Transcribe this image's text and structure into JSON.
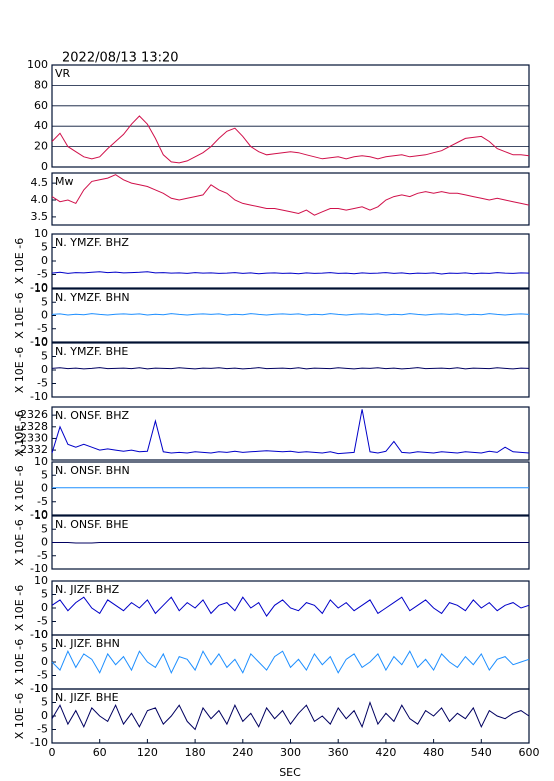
{
  "chart_data": {
    "type": "line",
    "title": "2022/08/13 13:20",
    "xlabel": "SEC",
    "xlim": [
      0,
      600
    ],
    "xticks": [
      0,
      60,
      120,
      180,
      240,
      300,
      360,
      420,
      480,
      540,
      600
    ],
    "x": [
      0,
      10,
      20,
      30,
      40,
      50,
      60,
      70,
      80,
      90,
      100,
      110,
      120,
      130,
      140,
      150,
      160,
      170,
      180,
      190,
      200,
      210,
      220,
      230,
      240,
      250,
      260,
      270,
      280,
      290,
      300,
      310,
      320,
      330,
      340,
      350,
      360,
      370,
      380,
      390,
      400,
      410,
      420,
      430,
      440,
      450,
      460,
      470,
      480,
      490,
      500,
      510,
      520,
      530,
      540,
      550,
      560,
      570,
      580,
      590,
      600
    ],
    "panels": [
      {
        "label": "VR",
        "ylim": [
          0,
          100
        ],
        "yticks": [
          0,
          20,
          40,
          60,
          80,
          100
        ],
        "grid": true,
        "color": "#d0104a",
        "values": [
          25,
          33,
          20,
          15,
          10,
          8,
          10,
          18,
          25,
          32,
          42,
          50,
          42,
          28,
          12,
          5,
          4,
          6,
          10,
          14,
          20,
          28,
          35,
          38,
          30,
          20,
          15,
          12,
          13,
          14,
          15,
          14,
          12,
          10,
          8,
          9,
          10,
          8,
          10,
          11,
          10,
          8,
          10,
          11,
          12,
          10,
          11,
          12,
          14,
          16,
          20,
          24,
          28,
          29,
          30,
          25,
          18,
          15,
          12,
          12,
          11
        ]
      },
      {
        "label": "Mw",
        "ylim": [
          3.26,
          4.8
        ],
        "yticks": [
          3.5,
          {
            "value": 4,
            "label": "4.0"
          },
          4.5
        ],
        "grid": false,
        "color": "#d0104a",
        "values": [
          4.1,
          3.95,
          4.0,
          3.9,
          4.3,
          4.55,
          4.6,
          4.65,
          4.75,
          4.6,
          4.5,
          4.45,
          4.4,
          4.3,
          4.2,
          4.05,
          4.0,
          4.05,
          4.1,
          4.15,
          4.45,
          4.3,
          4.2,
          4.0,
          3.9,
          3.85,
          3.8,
          3.75,
          3.75,
          3.7,
          3.65,
          3.6,
          3.7,
          3.55,
          3.65,
          3.75,
          3.75,
          3.7,
          3.75,
          3.8,
          3.7,
          3.8,
          4.0,
          4.1,
          4.15,
          4.1,
          4.2,
          4.25,
          4.2,
          4.25,
          4.2,
          4.2,
          4.15,
          4.1,
          4.05,
          4.0,
          4.05,
          4.0,
          3.95,
          3.9,
          3.85
        ]
      },
      {
        "label": "N. YMZF. BHZ",
        "ylabel": "X 10E -6",
        "ylim": [
          -10,
          10
        ],
        "yticks": [
          -10,
          -5,
          0,
          5,
          10
        ],
        "grid": false,
        "color": "#0000c8",
        "values": [
          -4.5,
          -4.2,
          -4.6,
          -4.3,
          -4.4,
          -4.2,
          -4.0,
          -4.3,
          -4.1,
          -4.4,
          -4.3,
          -4.2,
          -4.0,
          -4.4,
          -4.3,
          -4.5,
          -4.4,
          -4.6,
          -4.3,
          -4.5,
          -4.4,
          -4.6,
          -4.5,
          -4.3,
          -4.6,
          -4.4,
          -4.7,
          -4.5,
          -4.4,
          -4.6,
          -4.5,
          -4.7,
          -4.4,
          -4.6,
          -4.5,
          -4.3,
          -4.6,
          -4.5,
          -4.7,
          -4.4,
          -4.6,
          -4.5,
          -4.3,
          -4.6,
          -4.4,
          -4.7,
          -4.5,
          -4.6,
          -4.4,
          -4.8,
          -4.5,
          -4.6,
          -4.4,
          -4.7,
          -4.5,
          -4.6,
          -4.3,
          -4.5,
          -4.6,
          -4.4,
          -4.5
        ]
      },
      {
        "label": "N. YMZF. BHN",
        "ylabel": "X 10E -6",
        "ylim": [
          -10,
          10
        ],
        "yticks": [
          -10,
          -5,
          0,
          5,
          10
        ],
        "grid": false,
        "color": "#1e8fff",
        "values": [
          0.4,
          0.6,
          0.2,
          0.5,
          0.3,
          0.7,
          0.4,
          0.2,
          0.5,
          0.6,
          0.4,
          0.6,
          0.2,
          0.5,
          0.3,
          0.7,
          0.4,
          0.2,
          0.5,
          0.6,
          0.4,
          0.6,
          0.2,
          0.5,
          0.3,
          0.7,
          0.4,
          0.2,
          0.5,
          0.6,
          0.4,
          0.6,
          0.2,
          0.5,
          0.3,
          0.7,
          0.4,
          0.2,
          0.5,
          0.6,
          0.4,
          0.6,
          0.2,
          0.5,
          0.3,
          0.7,
          0.4,
          0.2,
          0.5,
          0.6,
          0.4,
          0.6,
          0.2,
          0.5,
          0.3,
          0.7,
          0.4,
          0.2,
          0.5,
          0.6,
          0.4
        ]
      },
      {
        "label": "N. YMZF. BHE",
        "ylabel": "X 10E -6",
        "ylim": [
          -10,
          10
        ],
        "yticks": [
          -10,
          -5,
          0,
          5,
          10
        ],
        "grid": false,
        "color": "#000060",
        "values": [
          0.6,
          0.8,
          0.5,
          0.7,
          0.4,
          0.6,
          0.9,
          0.5,
          0.6,
          0.7,
          0.5,
          0.8,
          0.4,
          0.7,
          0.6,
          0.5,
          0.8,
          0.6,
          0.4,
          0.7,
          0.6,
          0.8,
          0.5,
          0.7,
          0.4,
          0.6,
          0.9,
          0.5,
          0.6,
          0.7,
          0.5,
          0.8,
          0.4,
          0.7,
          0.6,
          0.5,
          0.8,
          0.6,
          0.4,
          0.7,
          0.6,
          0.8,
          0.5,
          0.7,
          0.4,
          0.6,
          0.9,
          0.5,
          0.6,
          0.7,
          0.5,
          0.8,
          0.4,
          0.7,
          0.6,
          0.5,
          0.8,
          0.6,
          0.4,
          0.7,
          0.6
        ]
      },
      {
        "label": "N. ONSF. BHZ",
        "ylabel": "X 10E -6",
        "ylim": [
          -2333.7,
          -2324.6
        ],
        "yticks": [
          -2332,
          -2330,
          -2328,
          -2326
        ],
        "grid": false,
        "color": "#0000c8",
        "values": [
          -2332.5,
          -2328,
          -2331,
          -2331.5,
          -2331,
          -2331.5,
          -2332,
          -2331.8,
          -2332,
          -2332.2,
          -2332,
          -2332.3,
          -2332.2,
          -2327,
          -2332.3,
          -2332.5,
          -2332.4,
          -2332.5,
          -2332.3,
          -2332.4,
          -2332.5,
          -2332.3,
          -2332.4,
          -2332.2,
          -2332.4,
          -2332.3,
          -2332.2,
          -2332.1,
          -2332.2,
          -2332.3,
          -2332.2,
          -2332.4,
          -2332.3,
          -2332.4,
          -2332.5,
          -2332.3,
          -2332.6,
          -2332.5,
          -2332.4,
          -2325,
          -2332.3,
          -2332.5,
          -2332.2,
          -2330.5,
          -2332.4,
          -2332.5,
          -2332.3,
          -2332.4,
          -2332.5,
          -2332.3,
          -2332.4,
          -2332.5,
          -2332.3,
          -2332.4,
          -2332.5,
          -2332.2,
          -2332.4,
          -2331.5,
          -2332.3,
          -2332.4,
          -2332.5
        ]
      },
      {
        "label": "N. ONSF. BHN",
        "ylabel": "X 10E -6",
        "ylim": [
          -10,
          10
        ],
        "yticks": [
          -10,
          -5,
          0,
          5,
          10
        ],
        "grid": false,
        "color": "#1e8fff",
        "values": [
          0.3,
          0.3,
          0.3,
          0.3,
          0.3,
          0.3,
          0.3,
          0.3,
          0.3,
          0.3,
          0.3,
          0.3,
          0.3,
          0.3,
          0.3,
          0.3,
          0.3,
          0.3,
          0.3,
          0.3,
          0.3,
          0.3,
          0.3,
          0.3,
          0.3,
          0.3,
          0.3,
          0.3,
          0.3,
          0.3,
          0.3,
          0.3,
          0.3,
          0.3,
          0.3,
          0.3,
          0.3,
          0.3,
          0.3,
          0.3,
          0.3,
          0.3,
          0.3,
          0.3,
          0.3,
          0.3,
          0.3,
          0.3,
          0.3,
          0.3,
          0.3,
          0.3,
          0.3,
          0.3,
          0.3,
          0.3,
          0.3,
          0.3,
          0.3,
          0.3,
          0.3
        ]
      },
      {
        "label": "N. ONSF. BHE",
        "ylabel": "X 10E -6",
        "ylim": [
          -10,
          10
        ],
        "yticks": [
          -10,
          -5,
          0,
          5,
          10
        ],
        "grid": false,
        "color": "#000060",
        "values": [
          0,
          0,
          0,
          -0.2,
          -0.2,
          -0.2,
          0,
          0,
          0,
          0,
          0,
          0,
          0,
          0,
          0,
          0,
          0,
          0,
          0,
          0,
          0,
          0,
          0,
          0,
          0,
          0,
          0,
          0,
          0,
          0,
          0,
          0,
          0,
          0,
          0,
          0,
          0,
          0,
          0,
          0,
          0,
          0,
          0,
          0,
          0,
          0,
          0,
          0,
          0,
          0,
          0,
          0,
          0,
          0,
          0,
          0,
          0,
          0,
          0,
          0,
          0
        ]
      },
      {
        "label": "N. JIZF. BHZ",
        "ylabel": "X 10E -6",
        "ylim": [
          -10,
          10
        ],
        "yticks": [
          -10,
          -5,
          0,
          5,
          10
        ],
        "grid": false,
        "color": "#0000c8",
        "values": [
          1,
          3,
          -1,
          2,
          4,
          0,
          -2,
          3,
          1,
          -1,
          2,
          0,
          3,
          -2,
          1,
          4,
          -1,
          2,
          0,
          3,
          -2,
          1,
          2,
          -1,
          4,
          0,
          2,
          -3,
          1,
          3,
          0,
          -1,
          2,
          1,
          -2,
          3,
          0,
          2,
          -1,
          1,
          3,
          -2,
          0,
          2,
          4,
          -1,
          1,
          3,
          0,
          -2,
          2,
          1,
          -1,
          3,
          0,
          2,
          -1,
          1,
          2,
          0,
          1
        ]
      },
      {
        "label": "N. JIZF. BHN",
        "ylabel": "X 10E -6",
        "ylim": [
          -10,
          10
        ],
        "yticks": [
          -10,
          -5,
          0,
          5,
          10
        ],
        "grid": false,
        "color": "#1e8fff",
        "values": [
          0,
          -3,
          4,
          -2,
          3,
          1,
          -4,
          3,
          -1,
          2,
          -3,
          4,
          0,
          -2,
          3,
          -4,
          2,
          1,
          -3,
          4,
          -1,
          3,
          -2,
          1,
          -4,
          3,
          0,
          -3,
          2,
          4,
          -2,
          1,
          -3,
          3,
          -1,
          2,
          -4,
          1,
          3,
          -2,
          0,
          3,
          -3,
          2,
          -1,
          4,
          -2,
          1,
          -3,
          3,
          0,
          -2,
          2,
          -1,
          3,
          -3,
          1,
          2,
          -1,
          0,
          1
        ]
      },
      {
        "label": "N. JIZF. BHE",
        "ylabel": "X 10E -6",
        "ylim": [
          -10,
          10
        ],
        "yticks": [
          -10,
          -5,
          0,
          5,
          10
        ],
        "grid": false,
        "color": "#000060",
        "values": [
          -1,
          4,
          -3,
          2,
          -4,
          3,
          0,
          -2,
          4,
          -3,
          1,
          -4,
          2,
          3,
          -3,
          0,
          4,
          -2,
          -5,
          3,
          -1,
          2,
          -3,
          4,
          -2,
          1,
          -4,
          3,
          -1,
          2,
          -3,
          1,
          4,
          -2,
          0,
          -3,
          3,
          -1,
          2,
          -4,
          5,
          -3,
          1,
          -2,
          4,
          -1,
          -3,
          2,
          0,
          3,
          -2,
          1,
          -1,
          3,
          -4,
          2,
          0,
          -1,
          1,
          2,
          0
        ]
      }
    ]
  }
}
